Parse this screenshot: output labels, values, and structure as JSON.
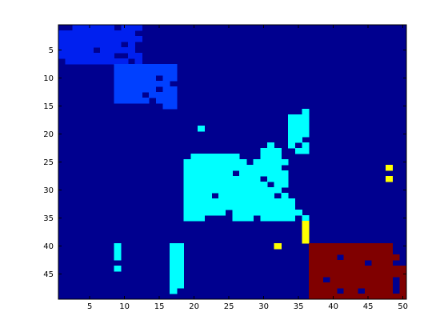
{
  "chart_data": {
    "type": "heatmap",
    "title": "",
    "xlabel": "",
    "ylabel": "",
    "xlim": [
      0.5,
      50.5
    ],
    "ylim": [
      0.5,
      49.5
    ],
    "y_direction": "reversed",
    "xticks": [
      "5",
      "10",
      "15",
      "20",
      "25",
      "30",
      "35",
      "40",
      "45",
      "50"
    ],
    "yticks": [
      "5",
      "10",
      "15",
      "20",
      "25",
      "30",
      "35",
      "40",
      "45"
    ],
    "grid": false,
    "legend": "none",
    "colormap": "jet",
    "colors": {
      "0": "#00008f",
      "1": "#0020ef",
      "2": "#0040ff",
      "3": "#00ffff",
      "4": "#ffff00",
      "5": "#800000"
    },
    "background_value": 0,
    "cells": [
      {
        "value": 1,
        "row": 1,
        "cols": [
          3,
          4,
          5,
          6,
          7,
          8,
          10,
          11,
          12
        ]
      },
      {
        "value": 1,
        "row": 2,
        "cols": [
          1,
          2,
          3,
          4,
          5,
          6,
          7,
          8,
          9,
          10,
          11
        ]
      },
      {
        "value": 1,
        "row": 3,
        "cols": [
          1,
          2,
          3,
          4,
          5,
          6,
          7,
          8,
          9,
          10,
          11,
          12
        ]
      },
      {
        "value": 1,
        "row": 4,
        "cols": [
          1,
          2,
          3,
          4,
          5,
          6,
          7,
          8,
          9,
          11
        ]
      },
      {
        "value": 1,
        "row": 5,
        "cols": [
          1,
          2,
          3,
          4,
          5,
          7,
          8,
          9,
          10,
          11
        ]
      },
      {
        "value": 1,
        "row": 6,
        "cols": [
          1,
          2,
          3,
          4,
          5,
          6,
          7,
          8,
          11,
          12
        ]
      },
      {
        "value": 1,
        "row": 7,
        "cols": [
          2,
          3,
          4,
          5,
          6,
          7,
          8,
          9,
          10,
          12
        ]
      },
      {
        "value": 2,
        "row": 8,
        "cols": [
          9,
          10,
          11,
          12,
          13,
          14,
          15,
          16,
          17
        ]
      },
      {
        "value": 2,
        "row": 9,
        "cols": [
          9,
          10,
          11,
          12,
          13,
          14,
          15,
          16,
          17
        ]
      },
      {
        "value": 2,
        "row": 10,
        "cols": [
          9,
          10,
          11,
          12,
          13,
          14,
          16,
          17
        ]
      },
      {
        "value": 2,
        "row": 11,
        "cols": [
          9,
          10,
          11,
          12,
          13,
          14,
          15,
          16
        ]
      },
      {
        "value": 2,
        "row": 12,
        "cols": [
          9,
          10,
          11,
          12,
          13,
          14,
          16,
          17
        ]
      },
      {
        "value": 2,
        "row": 13,
        "cols": [
          9,
          10,
          11,
          12,
          14,
          15,
          16,
          17
        ]
      },
      {
        "value": 2,
        "row": 14,
        "cols": [
          9,
          10,
          11,
          12,
          13,
          15,
          16,
          17
        ]
      },
      {
        "value": 2,
        "row": 15,
        "cols": [
          16,
          17
        ]
      },
      {
        "value": 3,
        "row": 16,
        "cols": [
          36
        ]
      },
      {
        "value": 3,
        "row": 17,
        "cols": [
          34,
          35,
          36
        ]
      },
      {
        "value": 3,
        "row": 18,
        "cols": [
          34,
          35,
          36
        ]
      },
      {
        "value": 3,
        "row": 19,
        "cols": [
          21,
          34,
          35,
          36
        ]
      },
      {
        "value": 3,
        "row": 20,
        "cols": [
          34,
          35,
          36
        ]
      },
      {
        "value": 3,
        "row": 21,
        "cols": [
          34,
          35
        ]
      },
      {
        "value": 3,
        "row": 22,
        "cols": [
          31,
          34,
          36
        ]
      },
      {
        "value": 3,
        "row": 23,
        "cols": [
          30,
          31,
          32,
          35,
          36
        ]
      },
      {
        "value": 3,
        "row": 24,
        "cols": [
          20,
          21,
          22,
          23,
          24,
          25,
          26,
          30,
          31,
          32
        ]
      },
      {
        "value": 3,
        "row": 25,
        "cols": [
          19,
          20,
          21,
          22,
          23,
          24,
          25,
          26,
          27,
          29,
          30,
          31,
          32,
          33
        ]
      },
      {
        "value": 3,
        "row": 26,
        "cols": [
          19,
          20,
          21,
          22,
          23,
          24,
          25,
          26,
          27,
          28,
          29,
          30,
          31,
          32
        ]
      },
      {
        "value": 3,
        "row": 27,
        "cols": [
          19,
          20,
          21,
          22,
          23,
          24,
          25,
          27,
          28,
          29,
          30,
          31,
          32,
          33
        ]
      },
      {
        "value": 3,
        "row": 28,
        "cols": [
          19,
          20,
          21,
          22,
          23,
          24,
          25,
          26,
          27,
          28,
          29,
          31,
          32,
          33
        ]
      },
      {
        "value": 3,
        "row": 29,
        "cols": [
          19,
          20,
          21,
          22,
          23,
          24,
          25,
          26,
          27,
          28,
          29,
          30,
          32,
          33
        ]
      },
      {
        "value": 3,
        "row": 30,
        "cols": [
          19,
          20,
          21,
          22,
          23,
          24,
          25,
          26,
          27,
          28,
          29,
          30,
          31,
          32
        ]
      },
      {
        "value": 3,
        "row": 31,
        "cols": [
          19,
          20,
          21,
          22,
          24,
          25,
          26,
          27,
          28,
          29,
          30,
          31,
          33
        ]
      },
      {
        "value": 3,
        "row": 32,
        "cols": [
          19,
          20,
          21,
          22,
          23,
          24,
          25,
          26,
          27,
          28,
          29,
          30,
          31,
          32,
          33,
          34
        ]
      },
      {
        "value": 3,
        "row": 33,
        "cols": [
          19,
          20,
          21,
          22,
          23,
          24,
          25,
          26,
          27,
          28,
          29,
          30,
          31,
          32,
          33,
          34
        ]
      },
      {
        "value": 3,
        "row": 34,
        "cols": [
          19,
          20,
          21,
          22,
          23,
          24,
          26,
          27,
          28,
          29,
          30,
          31,
          32,
          33,
          34,
          35
        ]
      },
      {
        "value": 3,
        "row": 35,
        "cols": [
          19,
          20,
          21,
          26,
          27,
          28,
          30,
          31,
          32,
          33,
          34,
          36
        ]
      },
      {
        "value": 4,
        "row": 36,
        "cols": [
          36
        ]
      },
      {
        "value": 4,
        "row": 37,
        "cols": [
          36
        ]
      },
      {
        "value": 4,
        "row": 38,
        "cols": [
          36
        ]
      },
      {
        "value": 4,
        "row": 39,
        "cols": [
          36
        ]
      },
      {
        "value": 4,
        "row": 40,
        "cols": [
          32
        ]
      },
      {
        "value": 3,
        "row": 40,
        "cols": [
          9,
          17,
          18
        ]
      },
      {
        "value": 3,
        "row": 41,
        "cols": [
          9,
          17,
          18
        ]
      },
      {
        "value": 3,
        "row": 42,
        "cols": [
          9,
          17,
          18
        ]
      },
      {
        "value": 3,
        "row": 43,
        "cols": [
          17,
          18
        ]
      },
      {
        "value": 3,
        "row": 44,
        "cols": [
          9,
          17,
          18
        ]
      },
      {
        "value": 3,
        "row": 45,
        "cols": [
          17,
          18
        ]
      },
      {
        "value": 3,
        "row": 46,
        "cols": [
          17,
          18
        ]
      },
      {
        "value": 3,
        "row": 47,
        "cols": [
          17,
          18
        ]
      },
      {
        "value": 3,
        "row": 48,
        "cols": [
          17
        ]
      },
      {
        "value": 4,
        "row": 26,
        "cols": [
          48
        ]
      },
      {
        "value": 4,
        "row": 28,
        "cols": [
          48
        ]
      },
      {
        "value": 5,
        "row": 40,
        "cols": [
          37,
          38,
          39,
          40,
          41,
          42,
          43,
          44,
          45,
          46,
          47,
          48
        ]
      },
      {
        "value": 5,
        "row": 41,
        "cols": [
          37,
          38,
          39,
          40,
          41,
          42,
          43,
          44,
          45,
          46,
          47,
          48
        ]
      },
      {
        "value": 5,
        "row": 42,
        "cols": [
          37,
          38,
          39,
          40,
          42,
          43,
          44,
          45,
          46,
          47,
          48,
          49
        ]
      },
      {
        "value": 5,
        "row": 43,
        "cols": [
          37,
          38,
          39,
          40,
          41,
          42,
          43,
          44,
          46,
          47,
          48
        ]
      },
      {
        "value": 5,
        "row": 44,
        "cols": [
          37,
          38,
          39,
          40,
          41,
          42,
          43,
          44,
          45,
          46,
          47,
          48,
          49,
          50
        ]
      },
      {
        "value": 5,
        "row": 45,
        "cols": [
          37,
          38,
          39,
          40,
          41,
          42,
          43,
          44,
          45,
          46,
          47,
          48,
          49,
          50
        ]
      },
      {
        "value": 5,
        "row": 46,
        "cols": [
          37,
          38,
          40,
          41,
          42,
          43,
          44,
          45,
          46,
          47,
          48,
          50
        ]
      },
      {
        "value": 5,
        "row": 47,
        "cols": [
          37,
          38,
          39,
          40,
          41,
          42,
          43,
          44,
          45,
          46,
          47,
          48,
          50
        ]
      },
      {
        "value": 5,
        "row": 48,
        "cols": [
          37,
          38,
          39,
          40,
          42,
          43,
          45,
          46,
          47,
          48,
          50
        ]
      },
      {
        "value": 5,
        "row": 49,
        "cols": [
          37,
          38,
          39,
          40,
          41,
          42,
          43,
          44,
          45,
          46,
          47,
          48,
          49,
          50
        ]
      }
    ]
  }
}
